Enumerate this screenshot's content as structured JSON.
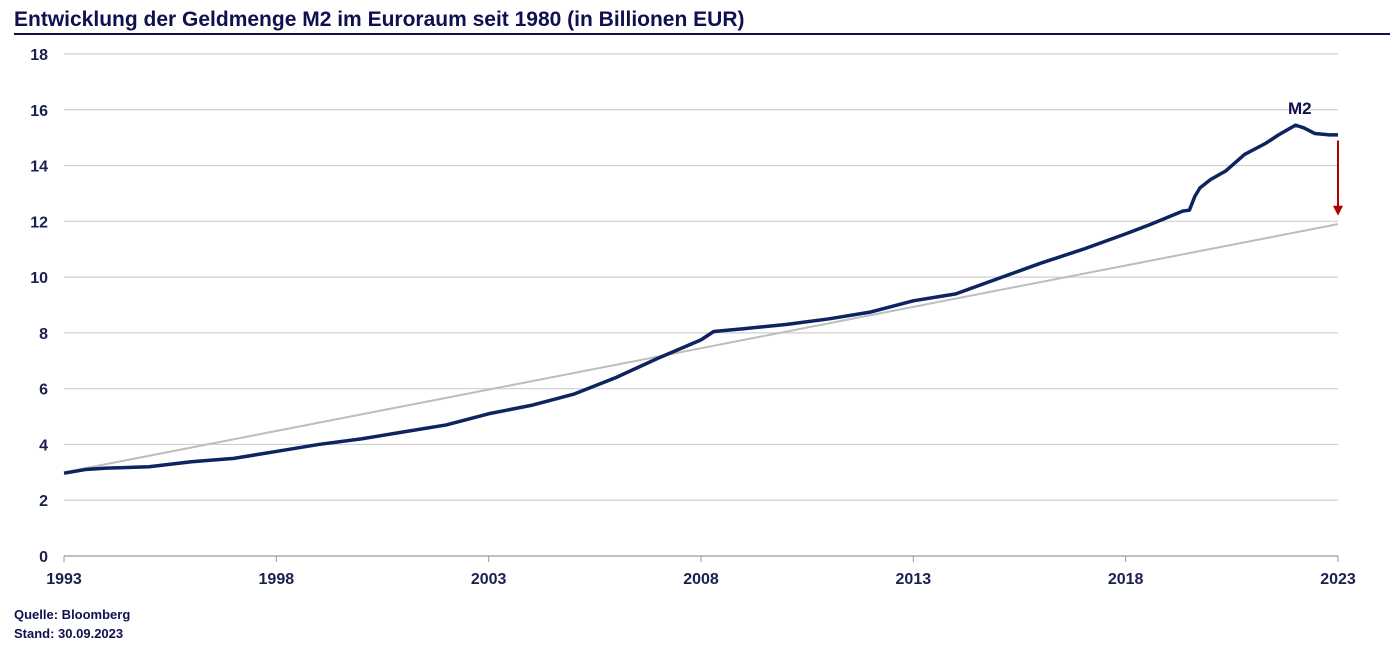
{
  "chart_data": {
    "type": "line",
    "title": "Entwicklung der Geldmenge M2 im Euroraum seit 1980 (in Billionen EUR)",
    "xlim": [
      1993,
      2023
    ],
    "ylim": [
      0,
      18
    ],
    "xticks": [
      "1993",
      "1998",
      "2003",
      "2008",
      "2013",
      "2018",
      "2023"
    ],
    "yticks": [
      "0",
      "2",
      "4",
      "6",
      "8",
      "10",
      "12",
      "14",
      "16",
      "18"
    ],
    "grid": "horizontal",
    "series": [
      {
        "name": "M2",
        "color": "#0e2360",
        "points": [
          [
            1993,
            2.97
          ],
          [
            1993.5,
            3.1
          ],
          [
            1994,
            3.15
          ],
          [
            1995,
            3.2
          ],
          [
            1996,
            3.38
          ],
          [
            1997,
            3.5
          ],
          [
            1998,
            3.75
          ],
          [
            1999,
            4.0
          ],
          [
            2000,
            4.2
          ],
          [
            2001,
            4.45
          ],
          [
            2002,
            4.7
          ],
          [
            2003,
            5.1
          ],
          [
            2004,
            5.4
          ],
          [
            2005,
            5.8
          ],
          [
            2006,
            6.4
          ],
          [
            2007,
            7.1
          ],
          [
            2008,
            7.75
          ],
          [
            2008.3,
            8.05
          ],
          [
            2009,
            8.15
          ],
          [
            2010,
            8.3
          ],
          [
            2011,
            8.5
          ],
          [
            2012,
            8.75
          ],
          [
            2013,
            9.15
          ],
          [
            2014,
            9.4
          ],
          [
            2015,
            9.95
          ],
          [
            2016,
            10.5
          ],
          [
            2017,
            11.0
          ],
          [
            2018,
            11.55
          ],
          [
            2018.6,
            11.9
          ],
          [
            2019.35,
            12.37
          ],
          [
            2019.5,
            12.4
          ],
          [
            2019.63,
            12.9
          ],
          [
            2019.75,
            13.2
          ],
          [
            2020.0,
            13.5
          ],
          [
            2020.35,
            13.8
          ],
          [
            2020.8,
            14.4
          ],
          [
            2021.3,
            14.8
          ],
          [
            2021.6,
            15.1
          ],
          [
            2022.0,
            15.45
          ],
          [
            2022.2,
            15.35
          ],
          [
            2022.45,
            15.15
          ],
          [
            2022.8,
            15.1
          ],
          [
            2023,
            15.1
          ]
        ]
      },
      {
        "color": "#bdbdbd",
        "points": [
          [
            1993,
            3.0
          ],
          [
            2023,
            11.9
          ]
        ]
      }
    ],
    "annotations": [
      {
        "text": "M2",
        "x": 2022.1,
        "y": 16.2
      },
      {
        "type": "arrow",
        "color": "#b00000",
        "from": [
          2023,
          14.9
        ],
        "to": [
          2023,
          12.2
        ]
      }
    ]
  },
  "footer": {
    "source": "Quelle: Bloomberg",
    "date": "Stand: 30.09.2023"
  }
}
